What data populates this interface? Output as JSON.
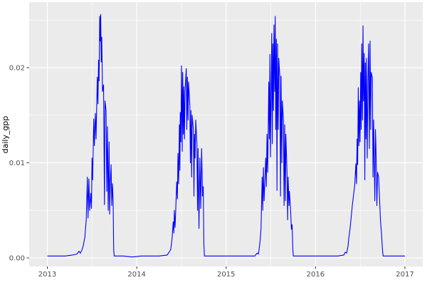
{
  "chart_data": {
    "type": "line",
    "title": "",
    "xlabel": "",
    "ylabel": "daily_gpp",
    "legend": "none",
    "grid": "major+minor",
    "x_ticks": [
      2013,
      2014,
      2015,
      2016,
      2017
    ],
    "x_tick_labels": [
      "2013",
      "2014",
      "2015",
      "2016",
      "2017"
    ],
    "x_minor_ticks": [
      2013.5,
      2014.5,
      2015.5,
      2016.5
    ],
    "y_ticks": [
      0,
      0.01,
      0.02
    ],
    "y_tick_labels": [
      "0.00",
      "0.01",
      "0.02"
    ],
    "y_minor_ticks": [
      0.005,
      0.015,
      0.025
    ],
    "xlim": [
      2012.797,
      2017.199
    ],
    "ylim": [
      -0.0009,
      0.02689
    ],
    "colors": {
      "line": "#0000FF",
      "panel_bg": "#EBEBEB",
      "grid": "#FFFFFF",
      "tick_mark": "#333333",
      "tick_label": "#4D4D4D",
      "axis_title": "#000000",
      "outer_bg": "#FFFFFF"
    },
    "series": [
      {
        "name": "daily_gpp",
        "x": [
          2013.0,
          2013.1,
          2013.2,
          2013.28,
          2013.33,
          2013.355,
          2013.37,
          2013.385,
          2013.4,
          2013.42,
          2013.435,
          2013.448,
          2013.455,
          2013.465,
          2013.474,
          2013.486,
          2013.494,
          2013.5,
          2013.507,
          2013.519,
          2013.526,
          2013.537,
          2013.545,
          2013.559,
          2013.566,
          2013.573,
          2013.579,
          2013.586,
          2013.591,
          2013.597,
          2013.603,
          2013.609,
          2013.617,
          2013.629,
          2013.639,
          2013.645,
          2013.657,
          2013.665,
          2013.673,
          2013.681,
          2013.691,
          2013.697,
          2013.705,
          2013.713,
          2013.721,
          2013.729,
          2013.736,
          2013.742,
          2013.748,
          2013.85,
          2013.95,
          2014.05,
          2014.15,
          2014.25,
          2014.341,
          2014.362,
          2014.381,
          2014.395,
          2014.408,
          2014.415,
          2014.421,
          2014.429,
          2014.437,
          2014.447,
          2014.455,
          2014.461,
          2014.469,
          2014.477,
          2014.483,
          2014.487,
          2014.494,
          2014.501,
          2014.509,
          2014.514,
          2014.521,
          2014.527,
          2014.534,
          2014.54,
          2014.554,
          2014.56,
          2014.567,
          2014.574,
          2014.58,
          2014.594,
          2014.6,
          2014.607,
          2014.614,
          2014.62,
          2014.634,
          2014.64,
          2014.646,
          2014.653,
          2014.66,
          2014.673,
          2014.68,
          2014.686,
          2014.696,
          2014.706,
          2014.716,
          2014.726,
          2014.736,
          2014.744,
          2014.751,
          2014.757,
          2014.85,
          2014.95,
          2015.05,
          2015.15,
          2015.25,
          2015.321,
          2015.345,
          2015.361,
          2015.377,
          2015.39,
          2015.403,
          2015.41,
          2015.417,
          2015.425,
          2015.443,
          2015.45,
          2015.457,
          2015.465,
          2015.477,
          2015.483,
          2015.49,
          2015.496,
          2015.51,
          2015.516,
          2015.522,
          2015.529,
          2015.535,
          2015.543,
          2015.549,
          2015.555,
          2015.562,
          2015.569,
          2015.575,
          2015.583,
          2015.589,
          2015.601,
          2015.608,
          2015.615,
          2015.623,
          2015.629,
          2015.641,
          2015.648,
          2015.655,
          2015.663,
          2015.668,
          2015.681,
          2015.688,
          2015.694,
          2015.703,
          2015.708,
          2015.721,
          2015.73,
          2015.738,
          2015.746,
          2015.752,
          2015.85,
          2015.95,
          2016.05,
          2016.15,
          2016.25,
          2016.316,
          2016.332,
          2016.348,
          2016.363,
          2016.371,
          2016.385,
          2016.398,
          2016.411,
          2016.425,
          2016.438,
          2016.451,
          2016.458,
          2016.465,
          2016.471,
          2016.478,
          2016.485,
          2016.491,
          2016.498,
          2016.505,
          2016.511,
          2016.517,
          2016.525,
          2016.531,
          2016.537,
          2016.545,
          2016.551,
          2016.557,
          2016.564,
          2016.57,
          2016.578,
          2016.586,
          2016.594,
          2016.602,
          2016.61,
          2016.618,
          2016.623,
          2016.636,
          2016.643,
          2016.65,
          2016.663,
          2016.67,
          2016.676,
          2016.686,
          2016.694,
          2016.706,
          2016.716,
          2016.726,
          2016.738,
          2016.75,
          2016.756,
          2016.85,
          2016.95,
          2017.0
        ],
        "y": [
          0.0002,
          0.0002,
          0.0002,
          0.0003,
          0.0004,
          0.0007,
          0.0005,
          0.0008,
          0.0012,
          0.0022,
          0.004,
          0.0085,
          0.0042,
          0.0083,
          0.005,
          0.0068,
          0.0052,
          0.0105,
          0.0082,
          0.0146,
          0.0118,
          0.0152,
          0.0125,
          0.019,
          0.0162,
          0.0208,
          0.0186,
          0.0254,
          0.0228,
          0.0256,
          0.0206,
          0.0232,
          0.0175,
          0.0182,
          0.0056,
          0.0165,
          0.0155,
          0.007,
          0.0138,
          0.005,
          0.0122,
          0.0046,
          0.008,
          0.0098,
          0.0055,
          0.0078,
          0.006,
          0.0009,
          0.0002,
          0.0002,
          0.0001,
          0.0002,
          0.0002,
          0.0002,
          0.0003,
          0.0006,
          0.0009,
          0.002,
          0.0038,
          0.0026,
          0.005,
          0.0032,
          0.0052,
          0.008,
          0.0062,
          0.011,
          0.0078,
          0.014,
          0.0092,
          0.0153,
          0.0122,
          0.0202,
          0.0112,
          0.0195,
          0.013,
          0.018,
          0.0125,
          0.0175,
          0.0199,
          0.0135,
          0.019,
          0.0145,
          0.0185,
          0.016,
          0.01,
          0.0155,
          0.0085,
          0.015,
          0.0135,
          0.0065,
          0.013,
          0.0105,
          0.0145,
          0.012,
          0.005,
          0.0115,
          0.0031,
          0.0105,
          0.0052,
          0.0115,
          0.0065,
          0.0075,
          0.0015,
          0.0002,
          0.0002,
          0.0002,
          0.0002,
          0.0002,
          0.0002,
          0.0002,
          0.0005,
          0.0004,
          0.0015,
          0.003,
          0.0085,
          0.005,
          0.0095,
          0.006,
          0.0105,
          0.0075,
          0.013,
          0.009,
          0.0185,
          0.0125,
          0.0214,
          0.0106,
          0.0236,
          0.012,
          0.0225,
          0.0155,
          0.0245,
          0.0175,
          0.0254,
          0.0135,
          0.023,
          0.0071,
          0.0225,
          0.0135,
          0.021,
          0.019,
          0.0065,
          0.0191,
          0.01,
          0.0165,
          0.0145,
          0.0055,
          0.014,
          0.006,
          0.013,
          0.009,
          0.004,
          0.0085,
          0.0055,
          0.007,
          0.005,
          0.003,
          0.0035,
          0.0009,
          0.0002,
          0.0002,
          0.0002,
          0.0002,
          0.0002,
          0.0002,
          0.0003,
          0.0006,
          0.0005,
          0.0012,
          0.002,
          0.003,
          0.0042,
          0.0055,
          0.0066,
          0.0076,
          0.0099,
          0.0078,
          0.0125,
          0.0098,
          0.0179,
          0.0118,
          0.0165,
          0.0122,
          0.0195,
          0.0135,
          0.0225,
          0.0145,
          0.0244,
          0.0165,
          0.0215,
          0.0082,
          0.0205,
          0.0125,
          0.021,
          0.0105,
          0.0185,
          0.0225,
          0.0115,
          0.0228,
          0.0135,
          0.0195,
          0.0189,
          0.0085,
          0.0145,
          0.006,
          0.0135,
          0.0116,
          0.0055,
          0.009,
          0.0085,
          0.0062,
          0.004,
          0.0025,
          0.0007,
          0.0002,
          0.0002,
          0.0002,
          0.0002
        ]
      }
    ]
  }
}
